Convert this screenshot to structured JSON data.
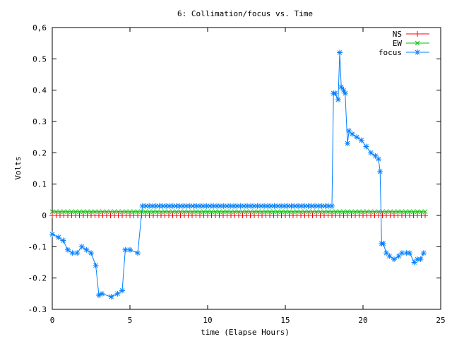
{
  "chart_data": {
    "type": "line",
    "title": "6: Collimation/focus vs. Time",
    "xlabel": "time (Elapse Hours)",
    "ylabel": "Volts",
    "xlim": [
      0,
      25
    ],
    "ylim": [
      -0.3,
      0.6
    ],
    "xticks": [
      "0",
      "5",
      "10",
      "15",
      "20",
      "25"
    ],
    "yticks": [
      "-0.3",
      "-0.2",
      "-0.1",
      "0",
      "0.1",
      "0.2",
      "0.3",
      "0.4",
      "0.5",
      "0,6"
    ],
    "grid": false,
    "legend_position": "top-right",
    "series": [
      {
        "name": "NS",
        "color": "#ff0000",
        "marker": "plus",
        "x": [
          0,
          24
        ],
        "y": [
          0.0,
          0.0
        ]
      },
      {
        "name": "EW",
        "color": "#00c000",
        "marker": "cross",
        "x": [
          0,
          24
        ],
        "y": [
          0.012,
          0.012
        ]
      },
      {
        "name": "focus",
        "color": "#0080ff",
        "marker": "star",
        "x": [
          0,
          0.4,
          0.7,
          1.0,
          1.3,
          1.6,
          1.9,
          2.2,
          2.5,
          2.8,
          3.0,
          3.2,
          3.8,
          4.2,
          4.5,
          4.7,
          5.0,
          5.5,
          5.8,
          18.0,
          18.1,
          18.2,
          18.4,
          18.5,
          18.6,
          18.75,
          18.85,
          19.0,
          19.1,
          19.3,
          19.6,
          19.9,
          20.2,
          20.5,
          20.8,
          21.0,
          21.1,
          21.2,
          21.3,
          21.5,
          21.7,
          22.0,
          22.3,
          22.5,
          22.8,
          23.0,
          23.3,
          23.5,
          23.7,
          23.9
        ],
        "y": [
          -0.06,
          -0.07,
          -0.08,
          -0.11,
          -0.12,
          -0.12,
          -0.1,
          -0.11,
          -0.12,
          -0.16,
          -0.255,
          -0.25,
          -0.26,
          -0.25,
          -0.24,
          -0.11,
          -0.11,
          -0.12,
          0.03,
          0.03,
          0.39,
          0.39,
          0.37,
          0.52,
          0.41,
          0.4,
          0.39,
          0.23,
          0.27,
          0.26,
          0.25,
          0.24,
          0.22,
          0.2,
          0.19,
          0.18,
          0.14,
          -0.09,
          -0.09,
          -0.12,
          -0.13,
          -0.14,
          -0.13,
          -0.12,
          -0.12,
          -0.12,
          -0.15,
          -0.14,
          -0.14,
          -0.12
        ]
      }
    ]
  }
}
